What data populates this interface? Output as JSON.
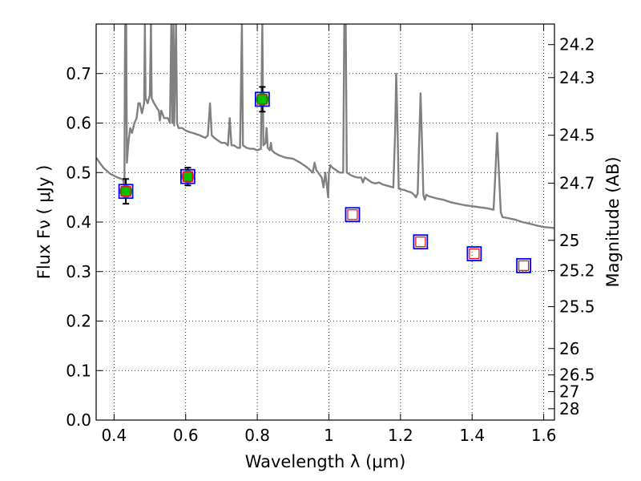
{
  "chart_data": {
    "type": "scatter",
    "xlabel": "Wavelength  λ (μm)",
    "ylabel_left": "Flux  Fν  ( μJy )",
    "ylabel_right": "Magnitude (AB)",
    "xlim": [
      0.35,
      1.63
    ],
    "ylim": [
      0.0,
      0.8
    ],
    "grid": true,
    "x_ticks": [
      0.4,
      0.6,
      0.8,
      1.0,
      1.2,
      1.4,
      1.6
    ],
    "x_tick_labels": [
      "0.4",
      "0.6",
      "0.8",
      "1",
      "1.2",
      "1.4",
      "1.6"
    ],
    "y_ticks": [
      0.0,
      0.1,
      0.2,
      0.3,
      0.4,
      0.5,
      0.6,
      0.7
    ],
    "y_tick_labels": [
      "0.0",
      "0.1",
      "0.2",
      "0.3",
      "0.4",
      "0.5",
      "0.6",
      "0.7"
    ],
    "right_ticks": [
      {
        "label": "24.2",
        "flux": 0.7584
      },
      {
        "label": "24.3",
        "flux": 0.6918
      },
      {
        "label": "24.5",
        "flux": 0.5754
      },
      {
        "label": "24.7",
        "flux": 0.4786
      },
      {
        "label": "25",
        "flux": 0.3631
      },
      {
        "label": "25.2",
        "flux": 0.302
      },
      {
        "label": "25.5",
        "flux": 0.2291
      },
      {
        "label": "26",
        "flux": 0.1445
      },
      {
        "label": "26.5",
        "flux": 0.0912
      },
      {
        "label": "27",
        "flux": 0.0575
      },
      {
        "label": "28",
        "flux": 0.0229
      }
    ],
    "colors": {
      "spectrum": "#808080",
      "observed_fill": "#00c000",
      "model_box": "#0000ff",
      "model_inner": "#ff0000",
      "errorbar": "#000000",
      "grid": "#000000"
    },
    "series": [
      {
        "kind": "spectrum",
        "points": [
          [
            0.35,
            0.53
          ],
          [
            0.37,
            0.51
          ],
          [
            0.39,
            0.497
          ],
          [
            0.41,
            0.49
          ],
          [
            0.425,
            0.486
          ],
          [
            0.429,
            0.47
          ],
          [
            0.43,
            0.7
          ],
          [
            0.431,
            0.8
          ],
          [
            0.432,
            0.6
          ],
          [
            0.434,
            0.8
          ],
          [
            0.436,
            0.52
          ],
          [
            0.44,
            0.56
          ],
          [
            0.445,
            0.59
          ],
          [
            0.45,
            0.58
          ],
          [
            0.457,
            0.6
          ],
          [
            0.463,
            0.61
          ],
          [
            0.468,
            0.64
          ],
          [
            0.472,
            0.64
          ],
          [
            0.478,
            0.62
          ],
          [
            0.484,
            0.64
          ],
          [
            0.486,
            0.8
          ],
          [
            0.488,
            0.65
          ],
          [
            0.494,
            0.64
          ],
          [
            0.5,
            0.657
          ],
          [
            0.503,
            0.8
          ],
          [
            0.505,
            0.65
          ],
          [
            0.512,
            0.64
          ],
          [
            0.52,
            0.63
          ],
          [
            0.525,
            0.625
          ],
          [
            0.528,
            0.605
          ],
          [
            0.532,
            0.625
          ],
          [
            0.54,
            0.61
          ],
          [
            0.55,
            0.61
          ],
          [
            0.556,
            0.6
          ],
          [
            0.56,
            0.8
          ],
          [
            0.563,
            0.6
          ],
          [
            0.566,
            0.8
          ],
          [
            0.568,
            0.595
          ],
          [
            0.573,
            0.8
          ],
          [
            0.576,
            0.6
          ],
          [
            0.58,
            0.59
          ],
          [
            0.59,
            0.59
          ],
          [
            0.6,
            0.585
          ],
          [
            0.61,
            0.582
          ],
          [
            0.62,
            0.58
          ],
          [
            0.64,
            0.575
          ],
          [
            0.655,
            0.57
          ],
          [
            0.662,
            0.575
          ],
          [
            0.668,
            0.64
          ],
          [
            0.673,
            0.575
          ],
          [
            0.68,
            0.57
          ],
          [
            0.69,
            0.565
          ],
          [
            0.7,
            0.56
          ],
          [
            0.71,
            0.56
          ],
          [
            0.718,
            0.555
          ],
          [
            0.723,
            0.61
          ],
          [
            0.728,
            0.555
          ],
          [
            0.735,
            0.555
          ],
          [
            0.745,
            0.55
          ],
          [
            0.752,
            0.55
          ],
          [
            0.757,
            0.8
          ],
          [
            0.76,
            0.555
          ],
          [
            0.77,
            0.55
          ],
          [
            0.78,
            0.548
          ],
          [
            0.79,
            0.548
          ],
          [
            0.8,
            0.545
          ],
          [
            0.81,
            0.548
          ],
          [
            0.814,
            0.8
          ],
          [
            0.817,
            0.555
          ],
          [
            0.823,
            0.56
          ],
          [
            0.826,
            0.59
          ],
          [
            0.829,
            0.55
          ],
          [
            0.835,
            0.545
          ],
          [
            0.838,
            0.56
          ],
          [
            0.841,
            0.545
          ],
          [
            0.848,
            0.54
          ],
          [
            0.86,
            0.535
          ],
          [
            0.88,
            0.53
          ],
          [
            0.9,
            0.528
          ],
          [
            0.92,
            0.52
          ],
          [
            0.94,
            0.51
          ],
          [
            0.955,
            0.5
          ],
          [
            0.96,
            0.52
          ],
          [
            0.965,
            0.505
          ],
          [
            0.97,
            0.5
          ],
          [
            0.98,
            0.49
          ],
          [
            0.985,
            0.47
          ],
          [
            0.99,
            0.5
          ],
          [
            0.995,
            0.47
          ],
          [
            0.998,
            0.45
          ],
          [
            1.0,
            0.5
          ],
          [
            1.004,
            0.515
          ],
          [
            1.01,
            0.51
          ],
          [
            1.02,
            0.505
          ],
          [
            1.03,
            0.5
          ],
          [
            1.04,
            0.5
          ],
          [
            1.043,
            0.8
          ],
          [
            1.047,
            0.8
          ],
          [
            1.05,
            0.5
          ],
          [
            1.06,
            0.495
          ],
          [
            1.07,
            0.492
          ],
          [
            1.08,
            0.49
          ],
          [
            1.09,
            0.49
          ],
          [
            1.095,
            0.48
          ],
          [
            1.1,
            0.49
          ],
          [
            1.11,
            0.485
          ],
          [
            1.12,
            0.48
          ],
          [
            1.13,
            0.478
          ],
          [
            1.14,
            0.48
          ],
          [
            1.15,
            0.476
          ],
          [
            1.16,
            0.474
          ],
          [
            1.17,
            0.472
          ],
          [
            1.18,
            0.47
          ],
          [
            1.185,
            0.58
          ],
          [
            1.188,
            0.7
          ],
          [
            1.192,
            0.58
          ],
          [
            1.195,
            0.468
          ],
          [
            1.2,
            0.466
          ],
          [
            1.21,
            0.465
          ],
          [
            1.22,
            0.462
          ],
          [
            1.23,
            0.46
          ],
          [
            1.238,
            0.455
          ],
          [
            1.243,
            0.45
          ],
          [
            1.248,
            0.458
          ],
          [
            1.252,
            0.56
          ],
          [
            1.256,
            0.66
          ],
          [
            1.26,
            0.56
          ],
          [
            1.264,
            0.455
          ],
          [
            1.268,
            0.445
          ],
          [
            1.272,
            0.455
          ],
          [
            1.28,
            0.452
          ],
          [
            1.3,
            0.448
          ],
          [
            1.32,
            0.445
          ],
          [
            1.34,
            0.44
          ],
          [
            1.36,
            0.437
          ],
          [
            1.38,
            0.434
          ],
          [
            1.4,
            0.432
          ],
          [
            1.42,
            0.43
          ],
          [
            1.44,
            0.428
          ],
          [
            1.46,
            0.425
          ],
          [
            1.465,
            0.5
          ],
          [
            1.47,
            0.58
          ],
          [
            1.475,
            0.5
          ],
          [
            1.48,
            0.42
          ],
          [
            1.485,
            0.41
          ],
          [
            1.5,
            0.408
          ],
          [
            1.52,
            0.405
          ],
          [
            1.54,
            0.4
          ],
          [
            1.56,
            0.397
          ],
          [
            1.58,
            0.393
          ],
          [
            1.6,
            0.39
          ],
          [
            1.63,
            0.388
          ]
        ]
      },
      {
        "kind": "observed",
        "points": [
          {
            "x": 0.433,
            "y": 0.462,
            "err": 0.025
          },
          {
            "x": 0.606,
            "y": 0.492,
            "err": 0.018
          },
          {
            "x": 0.814,
            "y": 0.648,
            "err": 0.025
          }
        ]
      },
      {
        "kind": "model",
        "points": [
          {
            "x": 0.433,
            "y": 0.462
          },
          {
            "x": 0.606,
            "y": 0.492
          },
          {
            "x": 0.814,
            "y": 0.648
          },
          {
            "x": 1.066,
            "y": 0.415
          },
          {
            "x": 1.256,
            "y": 0.36
          },
          {
            "x": 1.406,
            "y": 0.336
          },
          {
            "x": 1.544,
            "y": 0.312
          }
        ]
      }
    ]
  }
}
